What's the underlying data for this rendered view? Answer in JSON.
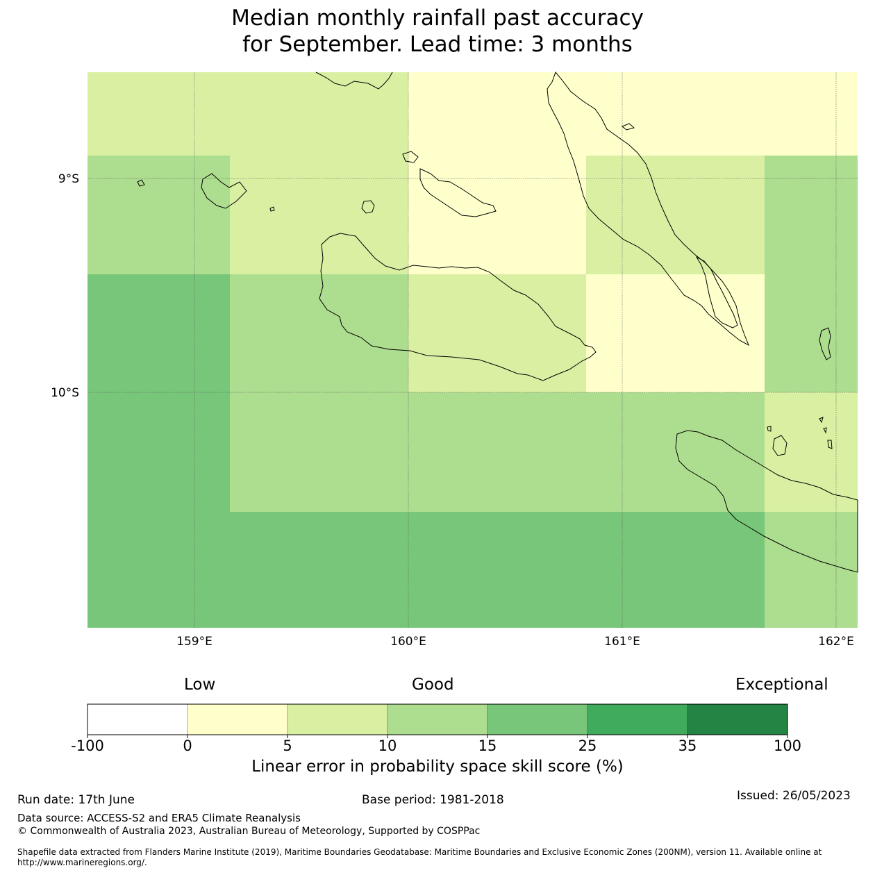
{
  "title": {
    "line1": "Median monthly rainfall past accuracy",
    "line2": "for September. Lead time: 3 months"
  },
  "map": {
    "lat_labels": [
      {
        "value": -9,
        "text": "9°S"
      },
      {
        "value": -10,
        "text": "10°S"
      }
    ],
    "lon_labels": [
      {
        "value": 159,
        "text": "159°E"
      },
      {
        "value": 160,
        "text": "160°E"
      },
      {
        "value": 161,
        "text": "161°E"
      },
      {
        "value": 162,
        "text": "162°E"
      }
    ],
    "extent": {
      "lon_min": 158.5,
      "lon_max": 162.1,
      "lat_min": -11.1,
      "lat_max": -8.5
    },
    "cell_colors": {
      "lemon": "#ffffcc",
      "pale": "#d9f0a3",
      "light": "#addd8e",
      "mid": "#78c679"
    },
    "coastline_color": "#000000",
    "gridline_color": "#555555"
  },
  "legend": {
    "categories": [
      {
        "text": "Low"
      },
      {
        "text": "Good"
      },
      {
        "text": "Exceptional"
      }
    ],
    "bins": [
      {
        "from": -100,
        "to": 0,
        "color": "#ffffff"
      },
      {
        "from": 0,
        "to": 5,
        "color": "#ffffcc"
      },
      {
        "from": 5,
        "to": 10,
        "color": "#d9f0a3"
      },
      {
        "from": 10,
        "to": 15,
        "color": "#addd8e"
      },
      {
        "from": 15,
        "to": 25,
        "color": "#78c679"
      },
      {
        "from": 25,
        "to": 35,
        "color": "#41ab5d"
      },
      {
        "from": 35,
        "to": 100,
        "color": "#238443"
      }
    ],
    "tick_labels": [
      "-100",
      "0",
      "5",
      "10",
      "15",
      "25",
      "35",
      "100"
    ],
    "title": "Linear error in probability space skill score (%)"
  },
  "footer": {
    "run_date": "Run date: 17th June",
    "base_period": "Base period: 1981-2018",
    "issued": "Issued: 26/05/2023",
    "data_source": "Data source: ACCESS-S2 and ERA5 Climate Reanalysis",
    "copyright": "© Commonwealth of Australia 2023, Australian Bureau of Meteorology, Supported by COSPPac",
    "shapefile_line1": "Shapefile data extracted from Flanders Marine Institute (2019), Maritime Boundaries Geodatabase: Maritime Boundaries and Exclusive Economic Zones (200NM), version 11. Available online at",
    "shapefile_line2": "http://www.marineregions.org/."
  }
}
